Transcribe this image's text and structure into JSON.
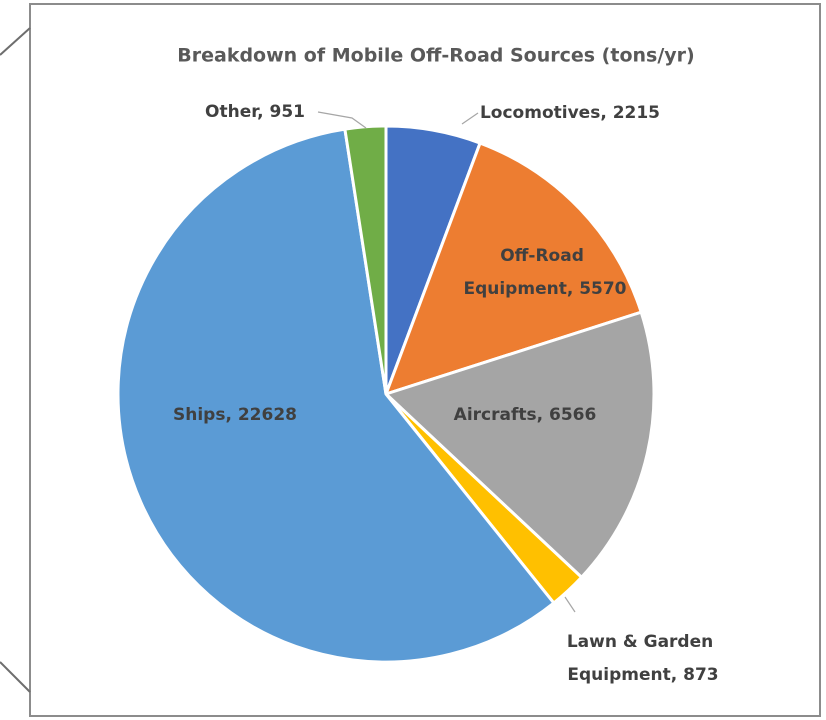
{
  "chart_data": {
    "type": "pie",
    "title": "Breakdown of Mobile Off-Road Sources (tons/yr)",
    "values": [
      2215,
      5570,
      6566,
      873,
      22628,
      951
    ],
    "value_labels": [
      "Locomotives, 2215",
      "Off-Road Equipment, 5570",
      "Aircrafts, 6566",
      "Lawn & Garden Equipment, 873",
      "Ships, 22628",
      "Other, 951"
    ],
    "colors": [
      "#4472c4",
      "#ed7d31",
      "#a5a5a5",
      "#ffc000",
      "#5b9bd5",
      "#70ad47"
    ]
  }
}
